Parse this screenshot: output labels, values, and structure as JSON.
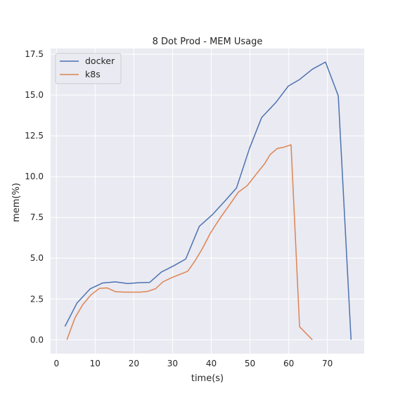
{
  "chart_data": {
    "type": "line",
    "title": "8 Dot Prod - MEM Usage",
    "xlabel": "time(s)",
    "ylabel": "mem(%)",
    "xlim": [
      -1.5,
      79.5
    ],
    "ylim": [
      -0.85,
      17.85
    ],
    "xticks": [
      0,
      10,
      20,
      30,
      40,
      50,
      60,
      70
    ],
    "yticks": [
      0.0,
      2.5,
      5.0,
      7.5,
      10.0,
      12.5,
      15.0,
      17.5
    ],
    "xtick_labels": [
      "0",
      "10",
      "20",
      "30",
      "40",
      "50",
      "60",
      "70"
    ],
    "ytick_labels": [
      "0.0",
      "2.5",
      "5.0",
      "7.5",
      "10.0",
      "12.5",
      "15.0",
      "17.5"
    ],
    "grid": true,
    "legend_position": "top-left",
    "series": [
      {
        "name": "docker",
        "color": "#4c72b0",
        "x": [
          2.2,
          5.3,
          8.7,
          11.9,
          15.2,
          18.4,
          21.5,
          24.1,
          27.1,
          30.4,
          33.4,
          36.9,
          40.2,
          43.5,
          46.5,
          49.9,
          53.0,
          56.7,
          59.9,
          62.8,
          66.1,
          69.5,
          72.8,
          76.1
        ],
        "y": [
          0.82,
          2.25,
          3.12,
          3.48,
          3.55,
          3.45,
          3.5,
          3.52,
          4.15,
          4.55,
          4.95,
          6.95,
          7.65,
          8.5,
          9.3,
          11.75,
          13.62,
          14.55,
          15.55,
          15.95,
          16.58,
          17.02,
          14.95,
          0.0
        ]
      },
      {
        "name": "k8s",
        "color": "#dd8452",
        "x": [
          2.7,
          4.8,
          6.8,
          8.9,
          11.1,
          13.1,
          15.2,
          17.6,
          19.4,
          21.6,
          23.6,
          25.6,
          27.5,
          29.7,
          31.8,
          33.9,
          35.7,
          37.6,
          39.8,
          42.4,
          44.8,
          47.0,
          49.3,
          51.6,
          53.8,
          55.2,
          57.0,
          58.7,
          60.6,
          62.8,
          66.1
        ],
        "y": [
          0.0,
          1.35,
          2.15,
          2.75,
          3.15,
          3.18,
          2.95,
          2.92,
          2.92,
          2.92,
          2.97,
          3.13,
          3.55,
          3.8,
          4.0,
          4.2,
          4.8,
          5.55,
          6.55,
          7.5,
          8.3,
          9.05,
          9.45,
          10.15,
          10.8,
          11.35,
          11.72,
          11.8,
          11.95,
          0.8,
          0.0
        ]
      }
    ]
  }
}
